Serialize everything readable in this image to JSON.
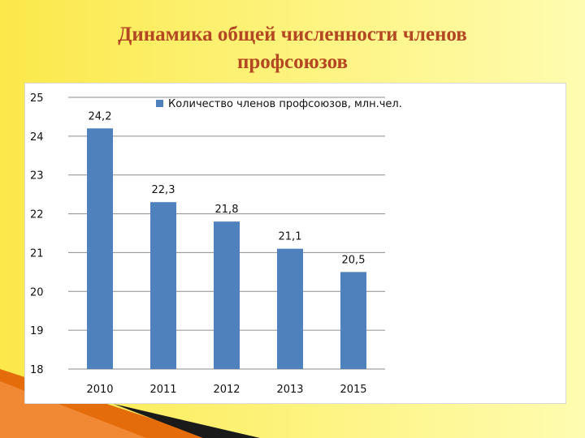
{
  "slide": {
    "title_line1": "Динамика общей численности членов",
    "title_line2": "профсоюзов"
  },
  "colors": {
    "title": "#b34722",
    "bar": "#4f81bd",
    "gridline": "#8c8c8c",
    "background_yellow": "#fbe84a",
    "accent_orange": "#e46c0a"
  },
  "chart_data": {
    "type": "bar",
    "categories": [
      "2010",
      "2011",
      "2012",
      "2013",
      "2015"
    ],
    "series": [
      {
        "name": "Количество членов профсоюзов, млн.чел.",
        "values": [
          24.2,
          22.3,
          21.8,
          21.1,
          20.5
        ],
        "labels": [
          "24,2",
          "22,3",
          "21,8",
          "21,1",
          "20,5"
        ]
      }
    ],
    "ylim": [
      18,
      25
    ],
    "yticks": [
      "18",
      "19",
      "20",
      "21",
      "22",
      "23",
      "24",
      "25"
    ],
    "grid": true,
    "legend_position": "top"
  }
}
